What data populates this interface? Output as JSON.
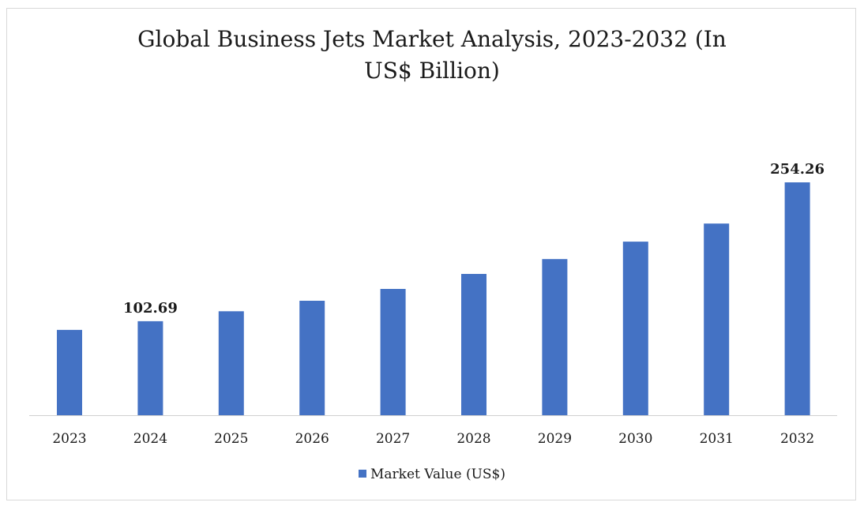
{
  "chart_data": {
    "type": "bar",
    "title": "Global Business Jets Market Analysis, 2023-2032 (In US$ Billion)",
    "title_lines": [
      "Global Business Jets Market Analysis, 2023-2032 (In",
      "US$ Billion)"
    ],
    "categories": [
      "2023",
      "2024",
      "2025",
      "2026",
      "2027",
      "2028",
      "2029",
      "2030",
      "2031",
      "2032"
    ],
    "series": [
      {
        "name": "Market Value (US$)",
        "values": [
          93.2,
          102.69,
          113.5,
          125.0,
          137.9,
          154.3,
          170.5,
          189.5,
          209.3,
          254.26
        ],
        "color": "#4472c4"
      }
    ],
    "data_labels": [
      {
        "category": "2024",
        "text": "102.69"
      },
      {
        "category": "2032",
        "text": "254.26"
      }
    ],
    "xlabel": "",
    "ylabel": "",
    "ylim": [
      0,
      300
    ],
    "y_axis_visible": false,
    "grid": false,
    "legend_position": "bottom"
  }
}
